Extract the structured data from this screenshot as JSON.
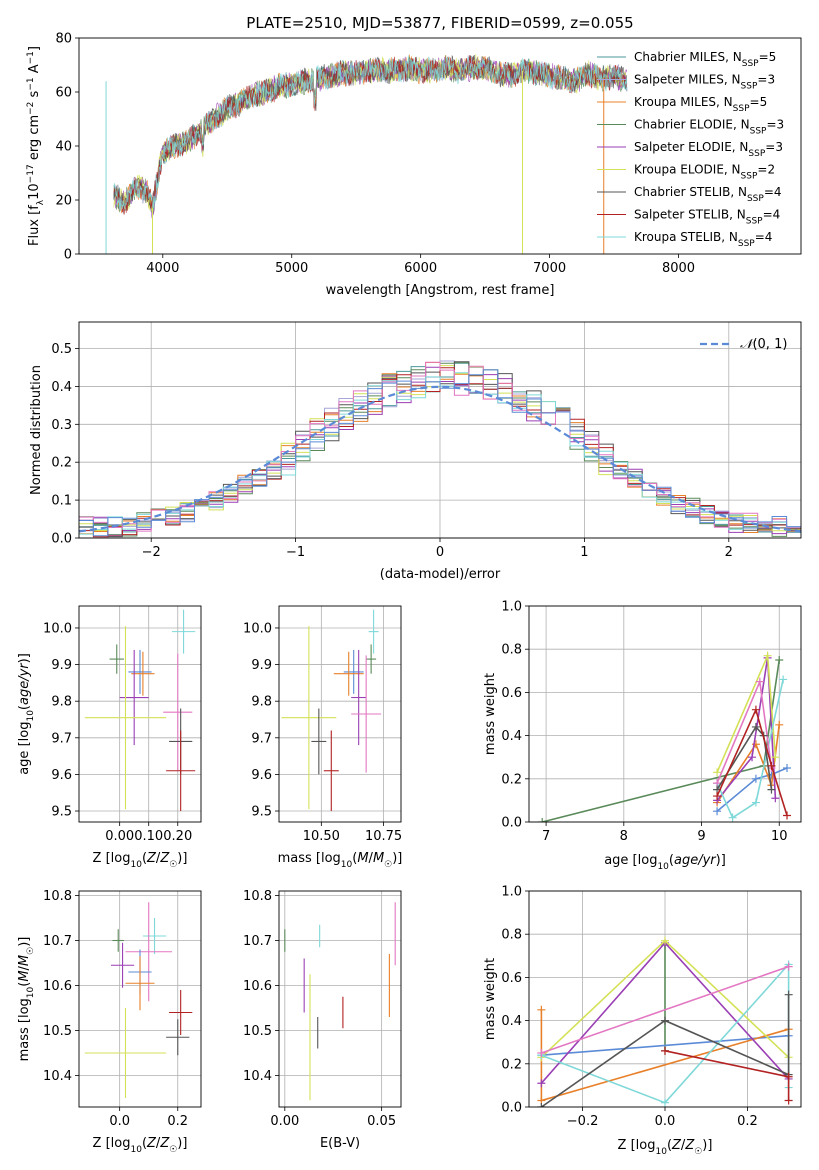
{
  "chart_data": [
    {
      "id": "spectrum",
      "type": "line",
      "title": "PLATE=2510, MJD=53877, FIBERID=0599, z=0.055",
      "xlabel": "wavelength [Angstrom, rest frame]",
      "ylabel": "Flux [f_λ10^-17 erg cm^-2 s^-1 A^-1]",
      "xlim": [
        3350,
        8950
      ],
      "ylim": [
        0,
        80
      ],
      "xticks": [
        4000,
        5000,
        6000,
        7000,
        8000
      ],
      "yticks": [
        0,
        20,
        40,
        60,
        80
      ],
      "grid": false,
      "legend_position": "top-right",
      "data_x_range": [
        3620,
        7600
      ],
      "base_curve": {
        "x": [
          3620,
          3700,
          3800,
          3880,
          3920,
          3960,
          4000,
          4100,
          4200,
          4300,
          4400,
          4500,
          4600,
          4700,
          4800,
          4900,
          5000,
          5100,
          5200,
          5300,
          5400,
          5500,
          5600,
          5700,
          5800,
          5900,
          6000,
          6100,
          6200,
          6300,
          6400,
          6500,
          6600,
          6700,
          6800,
          6900,
          7000,
          7100,
          7200,
          7300,
          7400,
          7500,
          7600
        ],
        "y": [
          22,
          19,
          25,
          23,
          17,
          28,
          38,
          40,
          42,
          46,
          50,
          54,
          56,
          59,
          60,
          62,
          63,
          64,
          65,
          66,
          67,
          67,
          68,
          68,
          68,
          69,
          68,
          68,
          69,
          68,
          69,
          69,
          67,
          66,
          68,
          67,
          66,
          65,
          64,
          67,
          65,
          66,
          64
        ]
      },
      "series": [
        {
          "name": "Chabrier MILES, N_SSP=5",
          "color": "#4a9a9a"
        },
        {
          "name": "Salpeter MILES, N_SSP=3",
          "color": "#a6a6d8"
        },
        {
          "name": "Kroupa MILES, N_SSP=5",
          "color": "#e8802a"
        },
        {
          "name": "Chabrier ELODIE, N_SSP=3",
          "color": "#5a8a5a"
        },
        {
          "name": "Salpeter ELODIE, N_SSP=3",
          "color": "#9b3fb5"
        },
        {
          "name": "Kroupa ELODIE, N_SSP=2",
          "color": "#d4e157"
        },
        {
          "name": "Chabrier STELIB, N_SSP=4",
          "color": "#555555"
        },
        {
          "name": "Salpeter STELIB, N_SSP=4",
          "color": "#b22222"
        },
        {
          "name": "Kroupa STELIB, N_SSP=4",
          "color": "#7fd8d8"
        }
      ],
      "spikes": [
        {
          "x": 3920,
          "color": "#d4e157"
        },
        {
          "x": 6790,
          "color": "#d4e157"
        },
        {
          "x": 7420,
          "color": "#e8802a"
        },
        {
          "x": 3560,
          "color": "#7fd8d8"
        }
      ]
    },
    {
      "id": "residuals",
      "type": "histogram",
      "xlabel": "(data-model)/error",
      "ylabel": "Normed distribution",
      "xlim": [
        -2.5,
        2.5
      ],
      "ylim": [
        0,
        0.57
      ],
      "xticks": [
        -2,
        -1,
        0,
        1,
        2
      ],
      "yticks": [
        0.0,
        0.1,
        0.2,
        0.3,
        0.4,
        0.5
      ],
      "grid": true,
      "legend": "N(0,1)",
      "legend_position": "top-right",
      "gaussian_color": "#5b8bd6",
      "bin_edges_start": -2.5,
      "bin_width": 0.1,
      "base_values": [
        0.03,
        0.03,
        0.03,
        0.03,
        0.04,
        0.05,
        0.06,
        0.07,
        0.08,
        0.1,
        0.12,
        0.14,
        0.16,
        0.18,
        0.21,
        0.24,
        0.27,
        0.3,
        0.33,
        0.35,
        0.37,
        0.39,
        0.4,
        0.41,
        0.42,
        0.43,
        0.42,
        0.41,
        0.4,
        0.39,
        0.37,
        0.35,
        0.33,
        0.3,
        0.27,
        0.24,
        0.21,
        0.18,
        0.16,
        0.13,
        0.11,
        0.09,
        0.08,
        0.06,
        0.05,
        0.04,
        0.04,
        0.03,
        0.03,
        0.02
      ],
      "series_colors": [
        "#4a9a9a",
        "#a6a6d8",
        "#e8802a",
        "#5a8a5a",
        "#9b3fb5",
        "#d4e157",
        "#555555",
        "#b22222",
        "#7fd8d8",
        "#e377c2",
        "#5b8bd6"
      ]
    },
    {
      "id": "age_vs_Z",
      "type": "errorbar",
      "xlabel": "Z [log10(Z/Z☉)]",
      "ylabel": "age [log10(age/yr)]",
      "xlim": [
        -0.14,
        0.28
      ],
      "ylim": [
        9.47,
        10.06
      ],
      "xticks": [
        0.0,
        0.1,
        0.2
      ],
      "xticklabels": [
        "0.00",
        "0.10",
        "0.20"
      ],
      "yticks": [
        9.5,
        9.6,
        9.7,
        9.8,
        9.9,
        10.0
      ],
      "grid": true,
      "points": [
        {
          "x": -0.01,
          "y": 9.915,
          "xerr": 0.025,
          "yerr": 0.04,
          "color": "#5a8a5a"
        },
        {
          "x": 0.07,
          "y": 9.88,
          "xerr": 0.04,
          "yerr": 0.06,
          "color": "#5b8bd6"
        },
        {
          "x": 0.08,
          "y": 9.875,
          "xerr": 0.04,
          "yerr": 0.06,
          "color": "#e8802a"
        },
        {
          "x": 0.05,
          "y": 9.81,
          "xerr": 0.05,
          "yerr": 0.13,
          "color": "#9b3fb5"
        },
        {
          "x": 0.02,
          "y": 9.755,
          "xerr": 0.14,
          "yerr": 0.25,
          "color": "#d4e157"
        },
        {
          "x": 0.22,
          "y": 9.99,
          "xerr": 0.04,
          "yerr": 0.06,
          "color": "#7fd8d8"
        },
        {
          "x": 0.2,
          "y": 9.77,
          "xerr": 0.05,
          "yerr": 0.16,
          "color": "#e377c2"
        },
        {
          "x": 0.21,
          "y": 9.69,
          "xerr": 0.04,
          "yerr": 0.09,
          "color": "#555555"
        },
        {
          "x": 0.21,
          "y": 9.61,
          "xerr": 0.05,
          "yerr": 0.11,
          "color": "#b22222"
        }
      ]
    },
    {
      "id": "age_vs_mass",
      "type": "errorbar",
      "xlabel": "mass [log10(M/M☉)]",
      "ylabel": "",
      "xlim": [
        10.33,
        10.82
      ],
      "ylim": [
        9.47,
        10.06
      ],
      "xticks": [
        10.5,
        10.75
      ],
      "xticklabels": [
        "10.50",
        "10.75"
      ],
      "yticks": [
        9.5,
        9.6,
        9.7,
        9.8,
        9.9,
        10.0
      ],
      "grid": true,
      "points": [
        {
          "x": 10.7,
          "y": 9.915,
          "xerr": 0.02,
          "yerr": 0.04,
          "color": "#5a8a5a"
        },
        {
          "x": 10.63,
          "y": 9.88,
          "xerr": 0.04,
          "yerr": 0.06,
          "color": "#5b8bd6"
        },
        {
          "x": 10.61,
          "y": 9.875,
          "xerr": 0.06,
          "yerr": 0.06,
          "color": "#e8802a"
        },
        {
          "x": 10.65,
          "y": 9.81,
          "xerr": 0.03,
          "yerr": 0.13,
          "color": "#9b3fb5"
        },
        {
          "x": 10.45,
          "y": 9.755,
          "xerr": 0.11,
          "yerr": 0.25,
          "color": "#d4e157"
        },
        {
          "x": 10.71,
          "y": 9.99,
          "xerr": 0.02,
          "yerr": 0.06,
          "color": "#7fd8d8"
        },
        {
          "x": 10.68,
          "y": 9.765,
          "xerr": 0.06,
          "yerr": 0.16,
          "color": "#e377c2"
        },
        {
          "x": 10.49,
          "y": 9.69,
          "xerr": 0.03,
          "yerr": 0.09,
          "color": "#555555"
        },
        {
          "x": 10.54,
          "y": 9.61,
          "xerr": 0.03,
          "yerr": 0.11,
          "color": "#b22222"
        }
      ]
    },
    {
      "id": "weight_vs_age",
      "type": "line",
      "xlabel": "age [log10(age/yr)]",
      "ylabel": "mass weight",
      "xlim": [
        6.78,
        10.28
      ],
      "ylim": [
        0,
        1
      ],
      "xticks": [
        7,
        8,
        9,
        10
      ],
      "yticks": [
        0.0,
        0.2,
        0.4,
        0.6,
        0.8,
        1.0
      ],
      "grid": true,
      "series": [
        {
          "color": "#5a8a5a",
          "x": [
            6.95,
            9.8,
            10.0
          ],
          "y": [
            0.0,
            0.26,
            0.75
          ]
        },
        {
          "color": "#5b8bd6",
          "x": [
            9.2,
            9.7,
            9.9,
            10.1
          ],
          "y": [
            0.05,
            0.2,
            0.22,
            0.25
          ]
        },
        {
          "color": "#e8802a",
          "x": [
            9.2,
            9.7,
            9.9,
            10.0
          ],
          "y": [
            0.09,
            0.36,
            0.17,
            0.45
          ]
        },
        {
          "color": "#9b3fb5",
          "x": [
            9.2,
            9.65,
            9.85,
            9.95
          ],
          "y": [
            0.1,
            0.3,
            0.76,
            0.11
          ]
        },
        {
          "color": "#d4e157",
          "x": [
            9.2,
            9.85,
            9.95
          ],
          "y": [
            0.23,
            0.77,
            0.3
          ]
        },
        {
          "color": "#7fd8d8",
          "x": [
            9.2,
            9.4,
            9.7,
            10.05
          ],
          "y": [
            0.18,
            0.02,
            0.09,
            0.66
          ]
        },
        {
          "color": "#e377c2",
          "x": [
            9.2,
            9.75,
            9.9
          ],
          "y": [
            0.18,
            0.65,
            0.25
          ]
        },
        {
          "color": "#555555",
          "x": [
            9.2,
            9.7,
            9.8,
            9.9
          ],
          "y": [
            0.15,
            0.44,
            0.4,
            0.15
          ]
        },
        {
          "color": "#b22222",
          "x": [
            9.2,
            9.7,
            9.9,
            10.1
          ],
          "y": [
            0.12,
            0.52,
            0.26,
            0.03
          ]
        }
      ]
    },
    {
      "id": "mass_vs_Z",
      "type": "errorbar",
      "xlabel": "Z [log10(Z/Z☉)]",
      "ylabel": "mass [log10(M/M☉)]",
      "xlim": [
        -0.14,
        0.28
      ],
      "ylim": [
        10.33,
        10.81
      ],
      "xticks": [
        0.0,
        0.2
      ],
      "xticklabels": [
        "0.0",
        "0.2"
      ],
      "yticks": [
        10.4,
        10.5,
        10.6,
        10.7,
        10.8
      ],
      "grid": true,
      "points": [
        {
          "x": -0.005,
          "y": 10.7,
          "xerr": 0.02,
          "yerr": 0.025,
          "color": "#5a8a5a"
        },
        {
          "x": 0.12,
          "y": 10.71,
          "xerr": 0.04,
          "yerr": 0.04,
          "color": "#7fd8d8"
        },
        {
          "x": 0.1,
          "y": 10.675,
          "xerr": 0.08,
          "yerr": 0.11,
          "color": "#e377c2"
        },
        {
          "x": 0.01,
          "y": 10.645,
          "xerr": 0.04,
          "yerr": 0.05,
          "color": "#9b3fb5"
        },
        {
          "x": 0.07,
          "y": 10.63,
          "xerr": 0.04,
          "yerr": 0.05,
          "color": "#5b8bd6"
        },
        {
          "x": 0.07,
          "y": 10.605,
          "xerr": 0.05,
          "yerr": 0.06,
          "color": "#e8802a"
        },
        {
          "x": 0.21,
          "y": 10.54,
          "xerr": 0.04,
          "yerr": 0.05,
          "color": "#b22222"
        },
        {
          "x": 0.2,
          "y": 10.485,
          "xerr": 0.04,
          "yerr": 0.04,
          "color": "#555555"
        },
        {
          "x": 0.02,
          "y": 10.45,
          "xerr": 0.14,
          "yerr": 0.1,
          "color": "#d4e157"
        }
      ]
    },
    {
      "id": "mass_vs_EBV",
      "type": "errorbar",
      "xlabel": "E(B-V)",
      "ylabel": "",
      "xlim": [
        -0.003,
        0.06
      ],
      "ylim": [
        10.33,
        10.81
      ],
      "xticks": [
        0.0,
        0.05
      ],
      "xticklabels": [
        "0.00",
        "0.05"
      ],
      "yticks": [
        10.4,
        10.5,
        10.6,
        10.7,
        10.8
      ],
      "grid": true,
      "points": [
        {
          "x": 0.0,
          "y": 10.7,
          "xerr": 0,
          "yerr": 0.025,
          "color": "#5a8a5a"
        },
        {
          "x": 0.018,
          "y": 10.71,
          "xerr": 0,
          "yerr": 0.025,
          "color": "#7fd8d8"
        },
        {
          "x": 0.057,
          "y": 10.715,
          "xerr": 0,
          "yerr": 0.07,
          "color": "#e377c2"
        },
        {
          "x": 0.01,
          "y": 10.6,
          "xerr": 0,
          "yerr": 0.06,
          "color": "#9b3fb5"
        },
        {
          "x": 0.054,
          "y": 10.6,
          "xerr": 0,
          "yerr": 0.07,
          "color": "#e8802a"
        },
        {
          "x": 0.03,
          "y": 10.54,
          "xerr": 0,
          "yerr": 0.035,
          "color": "#b22222"
        },
        {
          "x": 0.017,
          "y": 10.495,
          "xerr": 0,
          "yerr": 0.035,
          "color": "#555555"
        },
        {
          "x": 0.013,
          "y": 10.485,
          "xerr": 0,
          "yerr": 0.14,
          "color": "#d4e157"
        }
      ]
    },
    {
      "id": "weight_vs_Z",
      "type": "line",
      "xlabel": "Z [log10(Z/Z☉)]",
      "ylabel": "mass weight",
      "xlim": [
        -0.33,
        0.33
      ],
      "ylim": [
        0,
        1
      ],
      "xticks": [
        -0.2,
        0.0,
        0.2
      ],
      "xticklabels": [
        "−0.2",
        "0.0",
        "0.2"
      ],
      "yticks": [
        0.0,
        0.2,
        0.4,
        0.6,
        0.8,
        1.0
      ],
      "grid": true,
      "series": [
        {
          "color": "#5a8a5a",
          "x": [
            0.0,
            0.0
          ],
          "y": [
            0.26,
            0.75
          ]
        },
        {
          "color": "#5b8bd6",
          "x": [
            -0.3,
            0.3
          ],
          "y": [
            0.24,
            0.33
          ]
        },
        {
          "color": "#e8802a",
          "x": [
            -0.3,
            -0.3,
            0.3
          ],
          "y": [
            0.45,
            0.03,
            0.36
          ]
        },
        {
          "color": "#9b3fb5",
          "x": [
            -0.3,
            0.0,
            0.3
          ],
          "y": [
            0.11,
            0.76,
            0.13
          ]
        },
        {
          "color": "#d4e157",
          "x": [
            -0.3,
            0.0,
            0.3
          ],
          "y": [
            0.23,
            0.77,
            0.23
          ]
        },
        {
          "color": "#7fd8d8",
          "x": [
            -0.3,
            0.0,
            0.3,
            0.3
          ],
          "y": [
            0.24,
            0.02,
            0.66,
            0.09
          ]
        },
        {
          "color": "#e377c2",
          "x": [
            -0.3,
            0.3
          ],
          "y": [
            0.25,
            0.65
          ]
        },
        {
          "color": "#555555",
          "x": [
            -0.3,
            0.0,
            0.3,
            0.3
          ],
          "y": [
            0.0,
            0.4,
            0.15,
            0.52
          ]
        },
        {
          "color": "#b22222",
          "x": [
            0.0,
            0.3,
            0.3
          ],
          "y": [
            0.26,
            0.14,
            0.03
          ]
        }
      ]
    }
  ]
}
